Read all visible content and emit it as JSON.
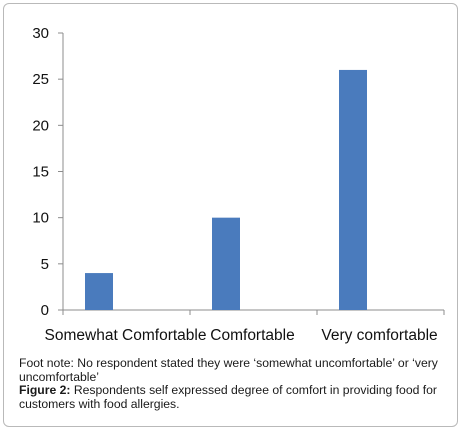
{
  "chart_data": {
    "type": "bar",
    "categories": [
      "Somewhat Comfortable",
      "Comfortable",
      "Very comfortable"
    ],
    "values": [
      4,
      10,
      26
    ],
    "ylim": [
      0,
      30
    ],
    "yticks": [
      0,
      5,
      10,
      15,
      20,
      25,
      30
    ],
    "title": "",
    "xlabel": "",
    "ylabel": "",
    "grid": false,
    "legend": "none",
    "bar_color": "#4a7bbd"
  },
  "caption": {
    "footnote": "Foot note: No respondent stated they were ‘somewhat uncomfortable’ or ‘very uncomfortable’",
    "figure_label": "Figure 2:",
    "figure_text": " Respondents self expressed degree of comfort in providing food for customers with food allergies."
  }
}
